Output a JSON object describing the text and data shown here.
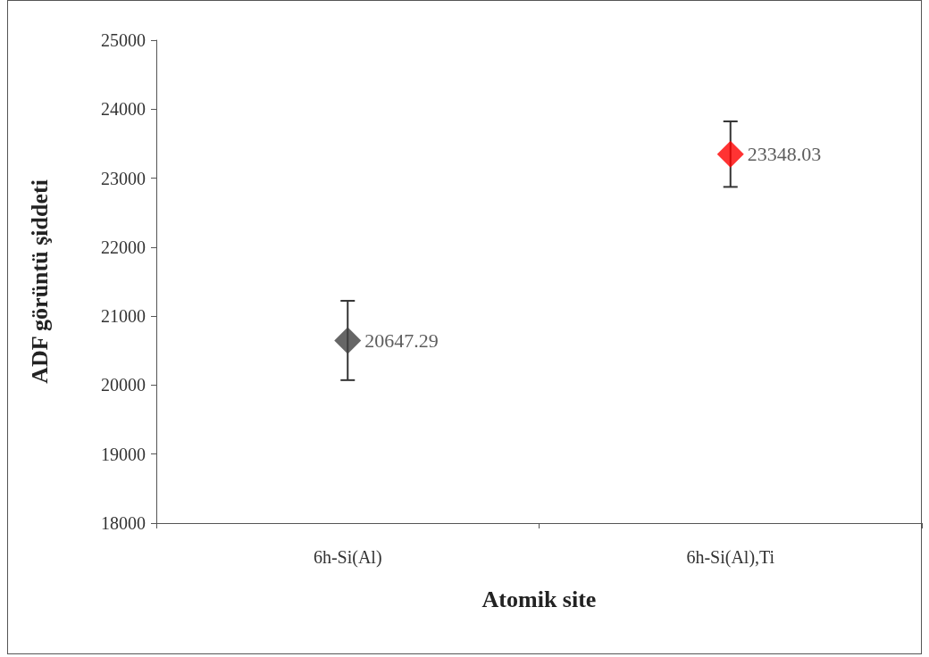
{
  "chart_data": {
    "type": "scatter",
    "xlabel": "Atomik site",
    "ylabel": "ADF görüntü şiddeti",
    "categories": [
      "6h-Si(Al)",
      "6h-Si(Al),Ti"
    ],
    "values": [
      20647.29,
      23348.03
    ],
    "colors": [
      "#404040",
      "#ff0000"
    ],
    "errors": [
      575,
      475
    ],
    "marker": "diamond",
    "data_labels": true,
    "grid": false,
    "legend": false,
    "ylim": [
      18000,
      25000
    ],
    "yticks": [
      18000,
      19000,
      20000,
      21000,
      22000,
      23000,
      24000,
      25000
    ]
  }
}
